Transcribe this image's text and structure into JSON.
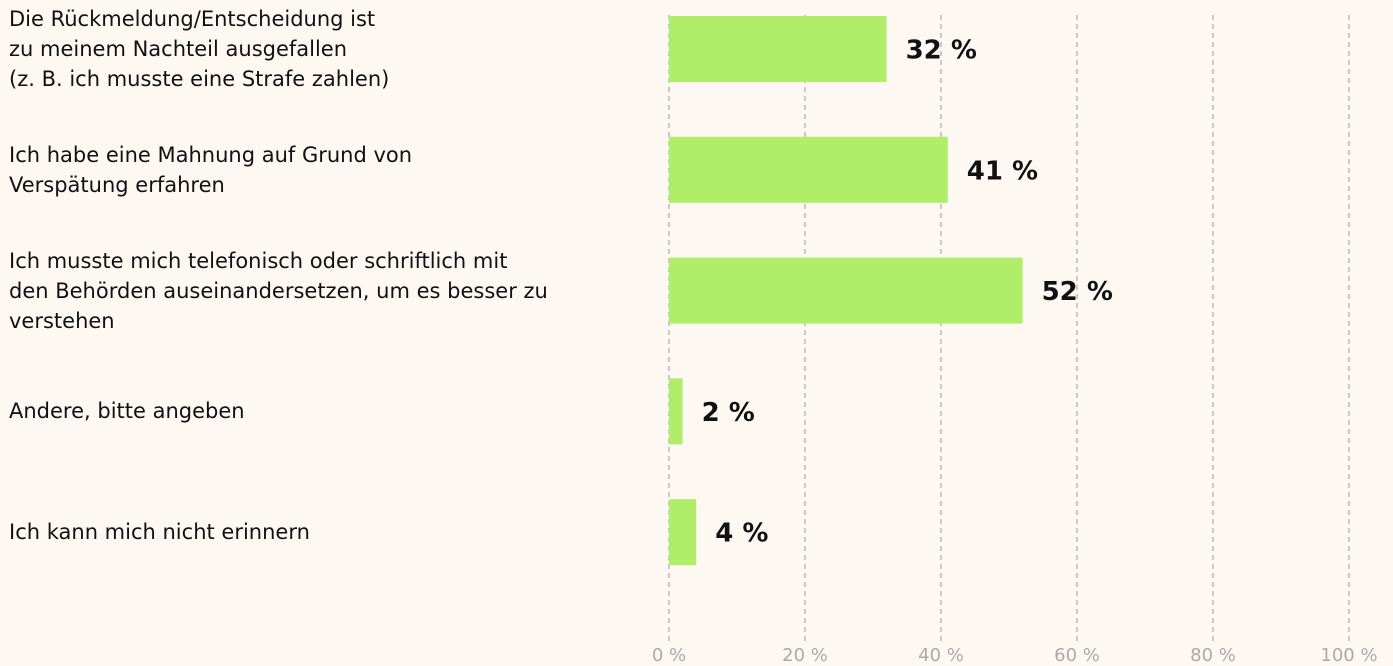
{
  "chart_data": {
    "type": "barh",
    "categories": [
      "Die Rückmeldung/Entscheidung ist\nzu meinem Nachteil ausgefallen\n(z. B. ich musste eine Strafe zahlen)",
      "Ich habe eine Mahnung auf Grund von\nVerspätung erfahren",
      "Ich musste mich telefonisch oder schriftlich mit\nden Behörden auseinandersetzen, um es besser zu\nverstehen",
      "Andere, bitte angeben",
      "Ich kann mich nicht erinnern"
    ],
    "values": [
      32,
      41,
      52,
      2,
      4
    ],
    "value_labels": [
      "32 %",
      "41 %",
      "52 %",
      "2 %",
      "4 %"
    ],
    "color": "#b0ee6a",
    "xlim": [
      0,
      100
    ],
    "xticks": [
      {
        "value": 0,
        "label": "0 %"
      },
      {
        "value": 20,
        "label": "20 %"
      },
      {
        "value": 40,
        "label": "40 %"
      },
      {
        "value": 60,
        "label": "60 %"
      },
      {
        "value": 80,
        "label": "80 %"
      },
      {
        "value": 100,
        "label": "100 %"
      }
    ],
    "grid": true
  }
}
